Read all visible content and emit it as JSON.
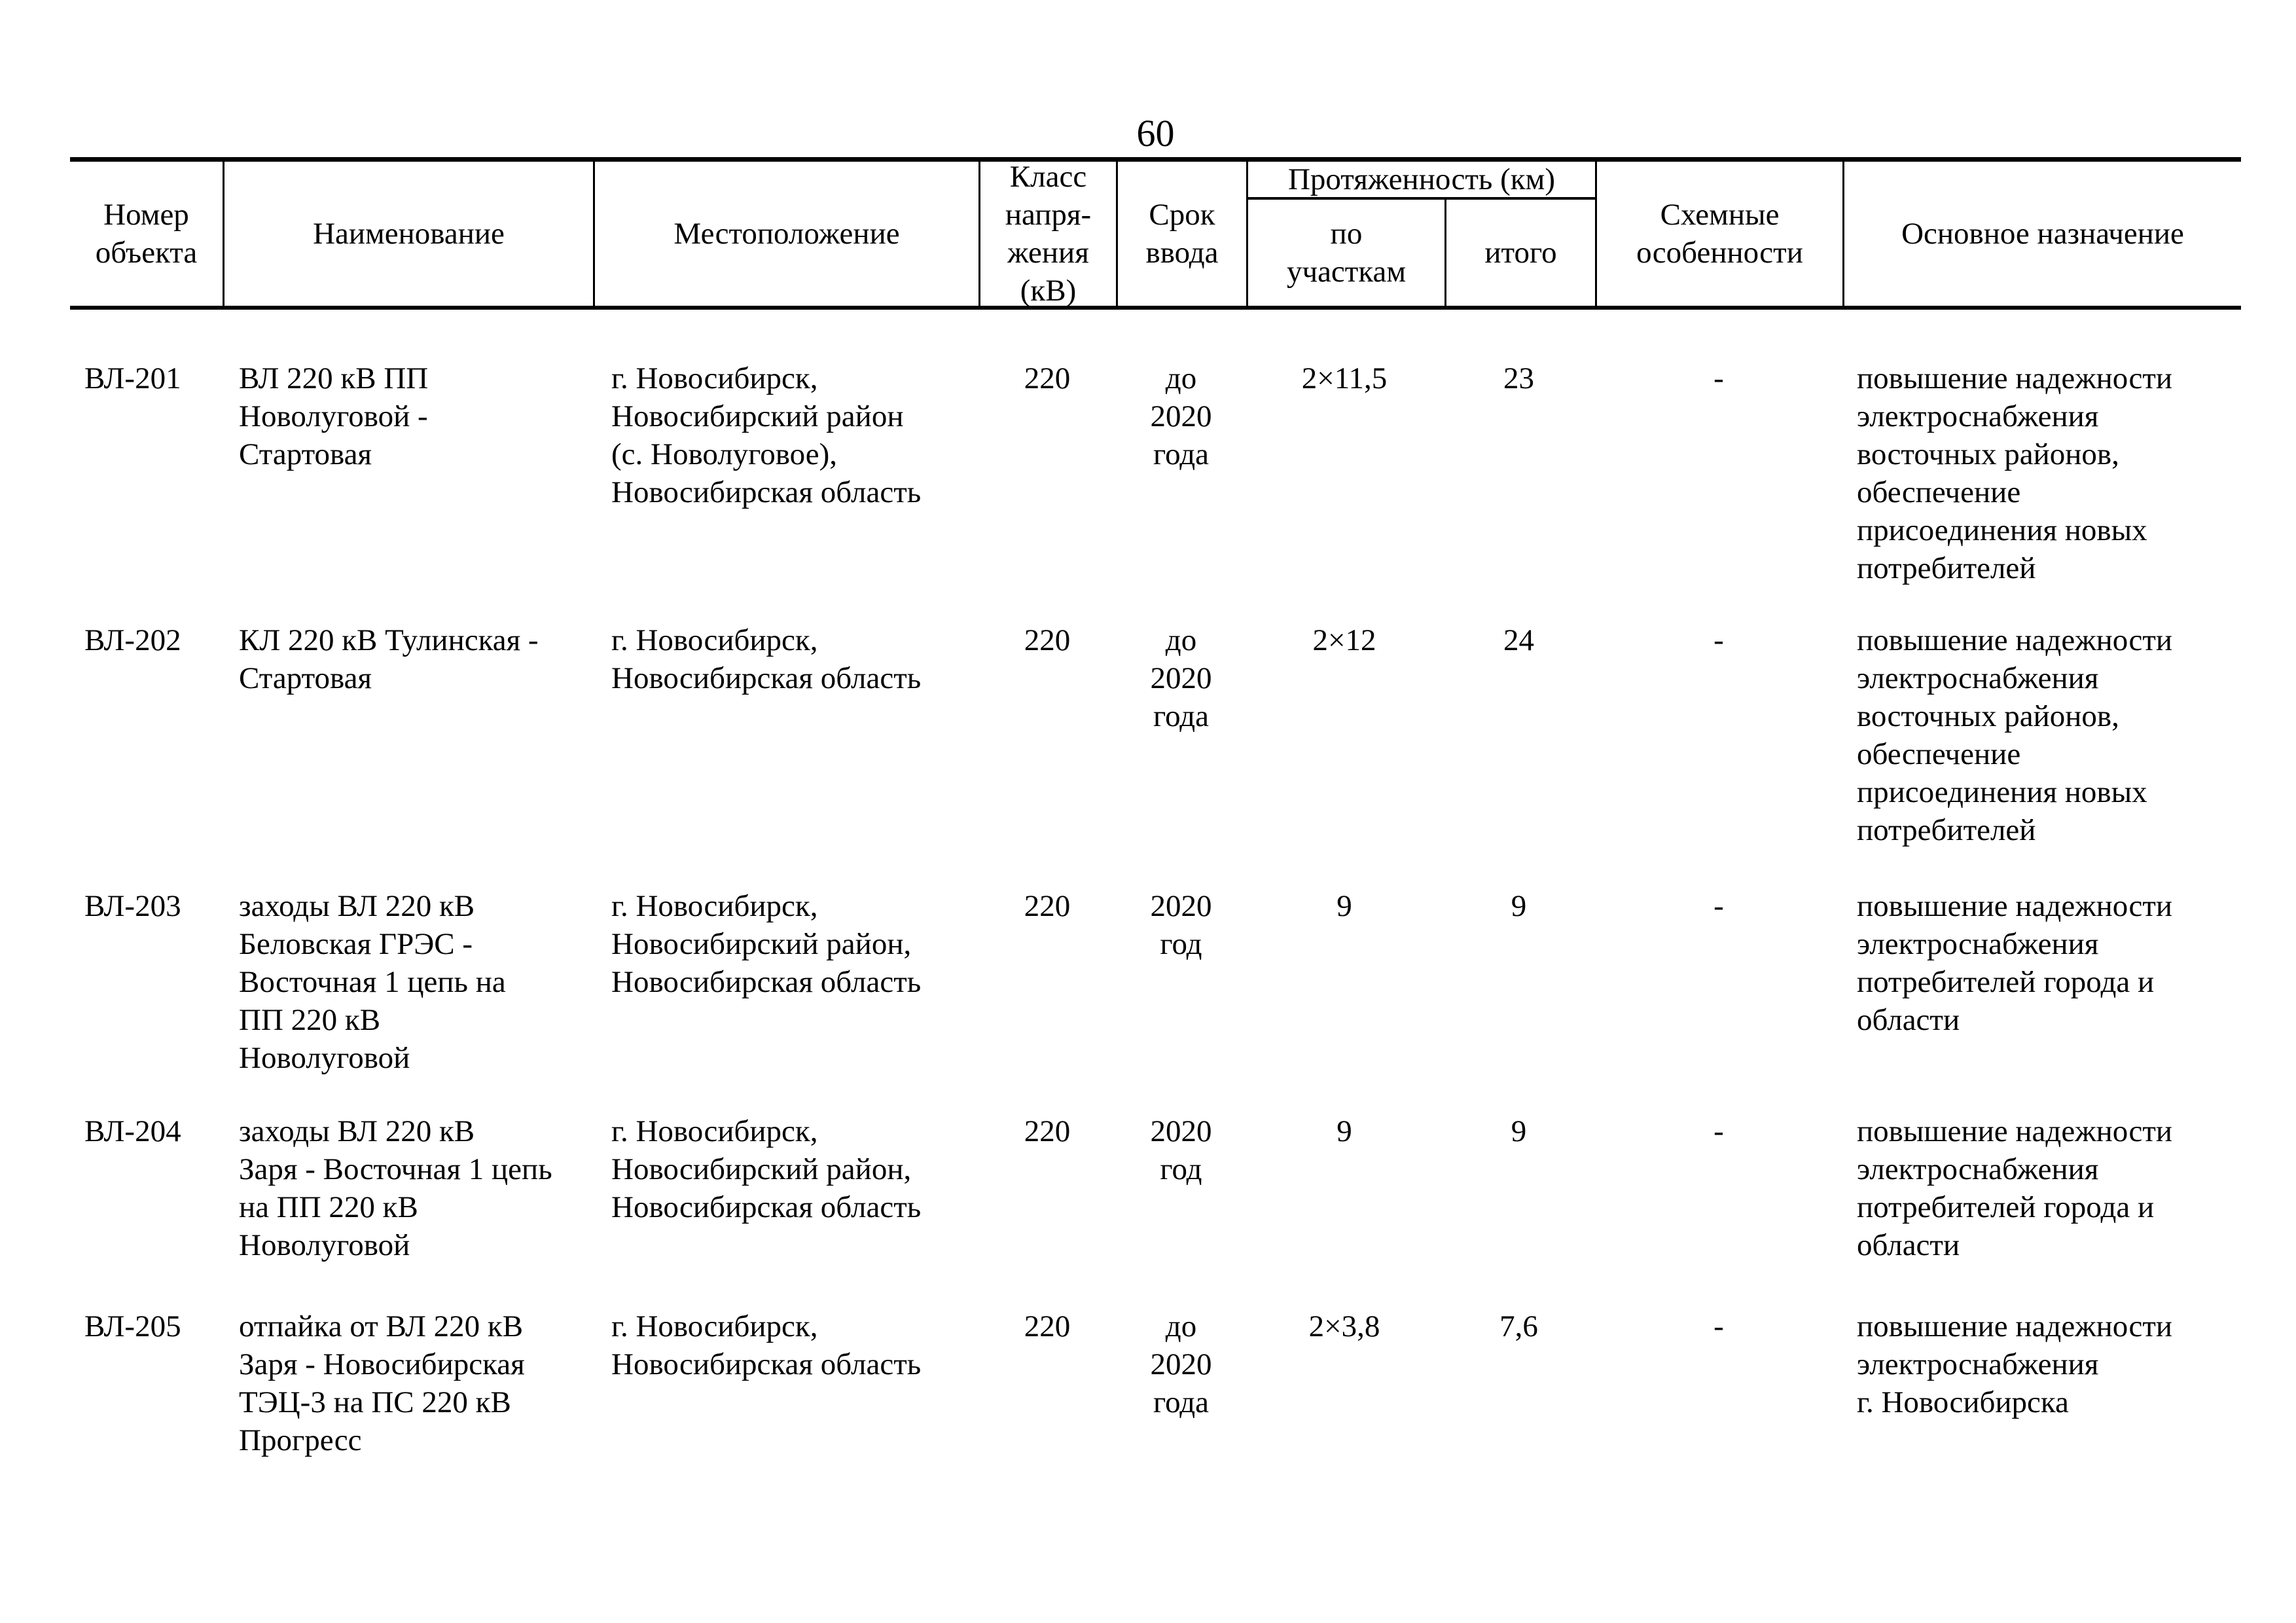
{
  "page": {
    "number": "60"
  },
  "table": {
    "headers": {
      "object_number": "Номер\nобъекта",
      "name": "Наименование",
      "location": "Местоположение",
      "voltage_class": "Класс\nнапря-\nжения\n(кВ)",
      "commissioning": "Срок\nввода",
      "length_group": "Протяженность (км)",
      "length_sections": "по\nучасткам",
      "length_total": "итого",
      "scheme_features": "Схемные\nособенности",
      "main_purpose": "Основное назначение"
    },
    "rows": [
      {
        "object_number": "ВЛ-201",
        "name": "ВЛ 220 кВ ПП\nНоволуговой -\nСтартовая",
        "location": "г. Новосибирск,\nНовосибирский район\n(с. Новолуговое),\nНовосибирская область",
        "voltage_class": "220",
        "commissioning": "до\n2020\nгода",
        "length_sections": "2×11,5",
        "length_total": "23",
        "scheme_features": "-",
        "main_purpose": "повышение надежности\nэлектроснабжения\nвосточных районов,\nобеспечение\nприсоединения новых\nпотребителей"
      },
      {
        "object_number": "ВЛ-202",
        "name": "КЛ 220 кВ Тулинская -\nСтартовая",
        "location": "г. Новосибирск,\nНовосибирская область",
        "voltage_class": "220",
        "commissioning": "до\n2020\nгода",
        "length_sections": "2×12",
        "length_total": "24",
        "scheme_features": "-",
        "main_purpose": "повышение надежности\nэлектроснабжения\nвосточных районов,\nобеспечение\nприсоединения новых\nпотребителей"
      },
      {
        "object_number": "ВЛ-203",
        "name": "заходы ВЛ 220 кВ\nБеловская ГРЭС -\nВосточная 1 цепь на\nПП 220 кВ\nНоволуговой",
        "location": "г. Новосибирск,\nНовосибирский район,\nНовосибирская область",
        "voltage_class": "220",
        "commissioning": "2020\nгод",
        "length_sections": "9",
        "length_total": "9",
        "scheme_features": "-",
        "main_purpose": "повышение надежности\nэлектроснабжения\nпотребителей города и\nобласти"
      },
      {
        "object_number": "ВЛ-204",
        "name": "заходы ВЛ 220 кВ\nЗаря - Восточная 1 цепь\nна ПП 220 кВ\nНоволуговой",
        "location": "г. Новосибирск,\nНовосибирский район,\nНовосибирская область",
        "voltage_class": "220",
        "commissioning": "2020\nгод",
        "length_sections": "9",
        "length_total": "9",
        "scheme_features": "-",
        "main_purpose": "повышение надежности\nэлектроснабжения\nпотребителей города и\nобласти"
      },
      {
        "object_number": "ВЛ-205",
        "name": "отпайка от ВЛ 220 кВ\nЗаря - Новосибирская\nТЭЦ-3 на ПС 220 кВ\nПрогресс",
        "location": "г. Новосибирск,\nНовосибирская область",
        "voltage_class": "220",
        "commissioning": "до\n2020\nгода",
        "length_sections": "2×3,8",
        "length_total": "7,6",
        "scheme_features": "-",
        "main_purpose": "повышение надежности\nэлектроснабжения\nг. Новосибирска"
      }
    ]
  }
}
